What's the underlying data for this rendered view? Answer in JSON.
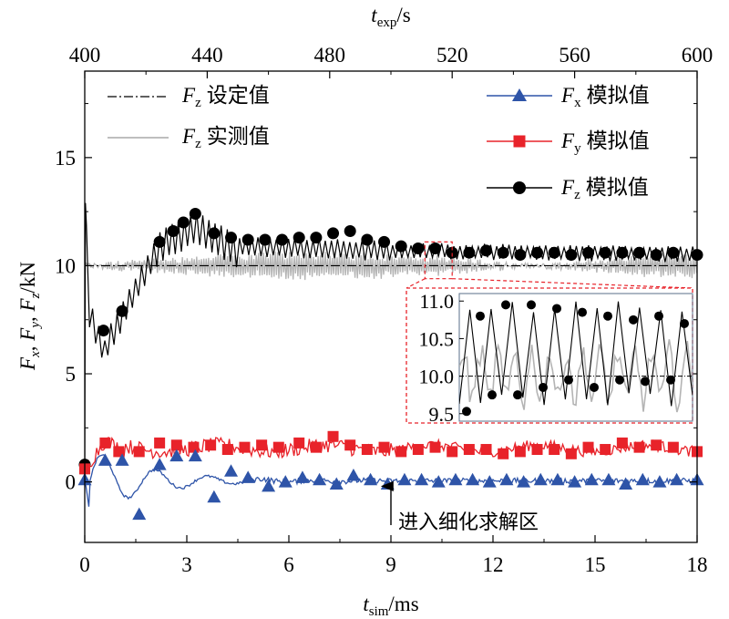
{
  "chart_data": {
    "type": "line",
    "x_bottom": {
      "var": "t",
      "sub": "sim",
      "unit": "/ms",
      "range": [
        0,
        18
      ],
      "ticks": [
        0,
        3,
        6,
        9,
        12,
        15,
        18
      ]
    },
    "x_top": {
      "var": "t",
      "sub": "exp",
      "unit": "/s",
      "range": [
        400,
        600
      ],
      "ticks": [
        400,
        440,
        480,
        520,
        560,
        600
      ]
    },
    "y": {
      "range": [
        -2.8,
        19.0
      ],
      "ticks": [
        0,
        5,
        10,
        15
      ],
      "label_parts": [
        "F",
        "x",
        ", ",
        "F",
        "y",
        ", ",
        "F",
        "z",
        "/kN"
      ]
    },
    "legend_left": [
      {
        "var": "F",
        "sub": "z",
        "text": "设定值",
        "color": "#000000",
        "style": "dashdot"
      },
      {
        "var": "F",
        "sub": "z",
        "text": "实测值",
        "color": "#b4b4b4",
        "style": "solid"
      }
    ],
    "legend_right": [
      {
        "var": "F",
        "sub": "x",
        "text": "模拟值",
        "color": "#2e54a8",
        "marker": "triangle"
      },
      {
        "var": "F",
        "sub": "y",
        "text": "模拟值",
        "color": "#e8232a",
        "marker": "square"
      },
      {
        "var": "F",
        "sub": "z",
        "text": "模拟值",
        "color": "#000000",
        "marker": "circle"
      }
    ],
    "annotation": {
      "text": "进入细化求解区",
      "x": 9.0,
      "y_from": -2.0,
      "y_to": -0.2
    },
    "setpoint": 10.0,
    "series": [
      {
        "key": "Fz",
        "markers": [
          [
            0,
            0.8
          ],
          [
            0.55,
            7.0
          ],
          [
            1.1,
            7.9
          ],
          [
            2.2,
            11.1
          ],
          [
            2.6,
            11.6
          ],
          [
            2.9,
            12.0
          ],
          [
            3.25,
            12.4
          ],
          [
            3.8,
            11.5
          ],
          [
            4.3,
            11.3
          ],
          [
            4.8,
            11.2
          ],
          [
            5.3,
            11.2
          ],
          [
            5.8,
            11.2
          ],
          [
            6.3,
            11.3
          ],
          [
            6.8,
            11.3
          ],
          [
            7.3,
            11.5
          ],
          [
            7.8,
            11.6
          ],
          [
            8.3,
            11.2
          ],
          [
            8.8,
            11.1
          ],
          [
            9.3,
            10.9
          ],
          [
            9.8,
            10.8
          ],
          [
            10.3,
            10.8
          ],
          [
            10.8,
            10.6
          ],
          [
            11.3,
            10.6
          ],
          [
            11.8,
            10.7
          ],
          [
            12.3,
            10.6
          ],
          [
            12.8,
            10.5
          ],
          [
            13.3,
            10.6
          ],
          [
            13.8,
            10.6
          ],
          [
            14.3,
            10.5
          ],
          [
            14.8,
            10.6
          ],
          [
            15.3,
            10.6
          ],
          [
            15.8,
            10.6
          ],
          [
            16.3,
            10.6
          ],
          [
            16.8,
            10.5
          ],
          [
            17.3,
            10.6
          ],
          [
            18.0,
            10.5
          ]
        ]
      },
      {
        "key": "Fy",
        "markers": [
          [
            0,
            0.6
          ],
          [
            0.6,
            1.8
          ],
          [
            1.0,
            1.4
          ],
          [
            1.6,
            1.4
          ],
          [
            2.2,
            1.8
          ],
          [
            2.7,
            1.7
          ],
          [
            3.2,
            1.6
          ],
          [
            3.7,
            1.7
          ],
          [
            4.2,
            1.5
          ],
          [
            4.7,
            1.6
          ],
          [
            5.2,
            1.7
          ],
          [
            5.7,
            1.6
          ],
          [
            6.3,
            1.8
          ],
          [
            6.8,
            1.6
          ],
          [
            7.3,
            2.1
          ],
          [
            7.8,
            1.7
          ],
          [
            8.3,
            1.5
          ],
          [
            8.8,
            1.6
          ],
          [
            9.3,
            1.4
          ],
          [
            9.8,
            1.5
          ],
          [
            10.3,
            1.6
          ],
          [
            10.8,
            1.4
          ],
          [
            11.3,
            1.5
          ],
          [
            11.8,
            1.5
          ],
          [
            12.3,
            1.3
          ],
          [
            12.8,
            1.4
          ],
          [
            13.3,
            1.5
          ],
          [
            13.8,
            1.5
          ],
          [
            14.3,
            1.3
          ],
          [
            14.8,
            1.6
          ],
          [
            15.3,
            1.5
          ],
          [
            15.8,
            1.8
          ],
          [
            16.3,
            1.6
          ],
          [
            16.8,
            1.7
          ],
          [
            17.3,
            1.6
          ],
          [
            18.0,
            1.4
          ]
        ]
      },
      {
        "key": "Fx",
        "markers": [
          [
            0,
            0.1
          ],
          [
            0.6,
            1.0
          ],
          [
            1.1,
            1.0
          ],
          [
            1.6,
            -1.5
          ],
          [
            2.2,
            0.8
          ],
          [
            2.7,
            1.2
          ],
          [
            3.25,
            1.2
          ],
          [
            3.8,
            -0.7
          ],
          [
            4.3,
            0.5
          ],
          [
            4.8,
            0.2
          ],
          [
            5.4,
            -0.2
          ],
          [
            5.9,
            0.0
          ],
          [
            6.4,
            0.2
          ],
          [
            6.9,
            0.1
          ],
          [
            7.4,
            -0.1
          ],
          [
            7.9,
            0.3
          ],
          [
            8.4,
            0.1
          ],
          [
            8.9,
            -0.1
          ],
          [
            9.4,
            0.1
          ],
          [
            9.9,
            0.1
          ],
          [
            10.4,
            0.0
          ],
          [
            10.9,
            0.1
          ],
          [
            11.4,
            0.1
          ],
          [
            11.9,
            0.0
          ],
          [
            12.4,
            0.1
          ],
          [
            12.9,
            0.0
          ],
          [
            13.4,
            0.1
          ],
          [
            13.9,
            0.1
          ],
          [
            14.4,
            0.0
          ],
          [
            14.9,
            0.1
          ],
          [
            15.4,
            0.1
          ],
          [
            15.9,
            -0.1
          ],
          [
            16.4,
            0.1
          ],
          [
            16.9,
            0.0
          ],
          [
            17.4,
            0.1
          ],
          [
            18.0,
            0.1
          ]
        ]
      }
    ],
    "inset": {
      "x_range": [
        10.0,
        10.8
      ],
      "y_range": [
        9.4,
        11.1
      ],
      "ticks": [
        9.5,
        10.0,
        10.5,
        11.0
      ],
      "tick_labels": [
        "9.5",
        "10.0",
        "10.5",
        "11.0"
      ]
    }
  }
}
